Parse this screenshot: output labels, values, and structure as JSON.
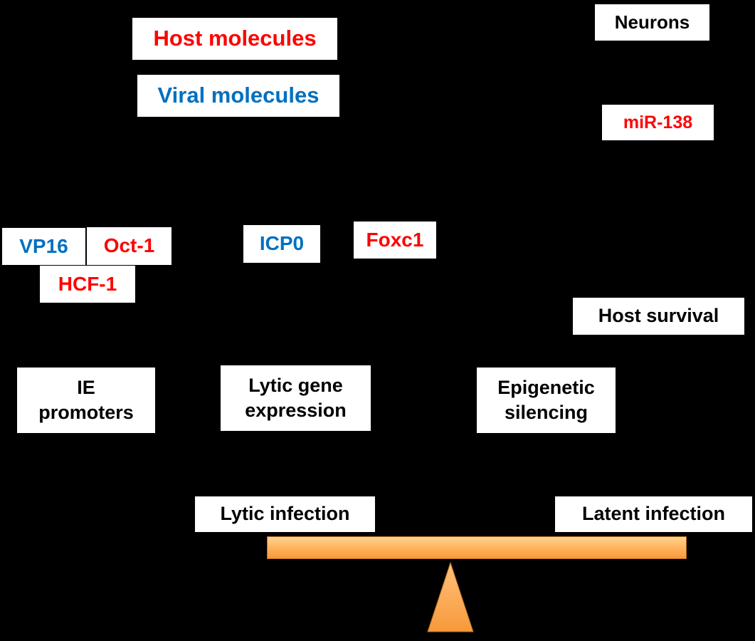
{
  "legend": {
    "host": "Host molecules",
    "viral": "Viral molecules"
  },
  "labels": {
    "neurons": "Neurons",
    "mir138": "miR-138",
    "vp16": "VP16",
    "oct1": "Oct-1",
    "hcf1": "HCF-1",
    "icp0": "ICP0",
    "foxc1": "Foxc1",
    "host_survival": "Host survival",
    "ie_promoters": [
      "IE",
      "promoters"
    ],
    "lytic_gene_expression": [
      "Lytic gene",
      "expression"
    ],
    "epigenetic_silencing": [
      "Epigenetic",
      "silencing"
    ],
    "lytic_infection": "Lytic infection",
    "latent_infection": "Latent infection"
  },
  "colors": {
    "host": "#ff0000",
    "viral": "#0070c0",
    "balance": "#ffb45e",
    "background": "#000000"
  }
}
